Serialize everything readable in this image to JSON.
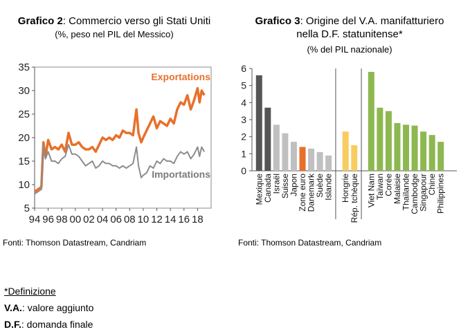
{
  "left_chart": {
    "title_bold": "Grafico 2",
    "title_rest": ": Commercio verso gli Stati Uniti",
    "subtitle": "(%, peso nel PIL del Messico)",
    "source": "Fonti: Thomson Datastream, Candriam"
  },
  "right_chart": {
    "title_bold": "Grafico 3",
    "title_rest": ": Origine del V.A. manifatturiero",
    "title_line2": "nella D.F. statunitense*",
    "subtitle": "(% del PIL nazionale)",
    "source": "Fonti: Thomson Datastream, Candriam"
  },
  "definitions": {
    "heading": "*Definizione",
    "items": [
      {
        "term": "V.A.",
        "text": ": valore aggiunto"
      },
      {
        "term": "D.F.",
        "text": ": domanda finale"
      }
    ]
  },
  "chart_data": [
    {
      "type": "line",
      "title": "Commercio verso gli Stati Uniti",
      "ylim": [
        5,
        35
      ],
      "yticks": [
        "5",
        "10",
        "15",
        "20",
        "25",
        "30",
        "35"
      ],
      "xlim": [
        1994,
        2020
      ],
      "xticks": [
        "94",
        "96",
        "98",
        "00",
        "02",
        "04",
        "06",
        "08",
        "10",
        "12",
        "14",
        "16",
        "18"
      ],
      "grid": false,
      "series": [
        {
          "name": "Exportations",
          "color": "#e8702a",
          "points": [
            [
              1994,
              8.5
            ],
            [
              1995,
              9.5
            ],
            [
              1995.3,
              19
            ],
            [
              1995.6,
              16
            ],
            [
              1996,
              19.5
            ],
            [
              1996.5,
              17.5
            ],
            [
              1997,
              18
            ],
            [
              1997.5,
              17.5
            ],
            [
              1998,
              18.5
            ],
            [
              1998.5,
              17
            ],
            [
              1999,
              21
            ],
            [
              1999.5,
              18.5
            ],
            [
              2000,
              18.5
            ],
            [
              2000.5,
              19
            ],
            [
              2001,
              18
            ],
            [
              2001.5,
              17.5
            ],
            [
              2002,
              17.5
            ],
            [
              2002.5,
              18
            ],
            [
              2003,
              17
            ],
            [
              2003.5,
              18.5
            ],
            [
              2004,
              20
            ],
            [
              2004.5,
              19.5
            ],
            [
              2005,
              20
            ],
            [
              2005.5,
              19.5
            ],
            [
              2006,
              20.5
            ],
            [
              2006.5,
              20
            ],
            [
              2007,
              21.5
            ],
            [
              2007.5,
              21
            ],
            [
              2008,
              21
            ],
            [
              2008.5,
              20.5
            ],
            [
              2009,
              26
            ],
            [
              2009.3,
              21
            ],
            [
              2009.7,
              19
            ],
            [
              2010,
              20
            ],
            [
              2010.5,
              21.5
            ],
            [
              2011,
              23
            ],
            [
              2011.5,
              24.5
            ],
            [
              2012,
              22
            ],
            [
              2012.5,
              23.5
            ],
            [
              2013,
              23
            ],
            [
              2013.5,
              22.5
            ],
            [
              2014,
              24
            ],
            [
              2014.5,
              23
            ],
            [
              2015,
              26
            ],
            [
              2015.5,
              27.5
            ],
            [
              2016,
              27
            ],
            [
              2016.5,
              29
            ],
            [
              2017,
              26
            ],
            [
              2017.5,
              28
            ],
            [
              2018,
              30.5
            ],
            [
              2018.3,
              27.5
            ],
            [
              2018.6,
              30
            ],
            [
              2019,
              29
            ]
          ]
        },
        {
          "name": "Importations",
          "color": "#8c8c8c",
          "points": [
            [
              1994,
              8
            ],
            [
              1995,
              9
            ],
            [
              1995.3,
              18.5
            ],
            [
              1995.6,
              15.5
            ],
            [
              1996,
              17
            ],
            [
              1996.5,
              15
            ],
            [
              1997,
              15
            ],
            [
              1997.5,
              14.5
            ],
            [
              1998,
              15.5
            ],
            [
              1998.5,
              16
            ],
            [
              1999,
              18.5
            ],
            [
              1999.5,
              16.5
            ],
            [
              2000,
              16.5
            ],
            [
              2000.5,
              16
            ],
            [
              2001,
              15
            ],
            [
              2001.5,
              14
            ],
            [
              2002,
              14.5
            ],
            [
              2002.5,
              15
            ],
            [
              2003,
              13.5
            ],
            [
              2003.5,
              14
            ],
            [
              2004,
              15
            ],
            [
              2004.5,
              14.5
            ],
            [
              2005,
              14.5
            ],
            [
              2005.5,
              14
            ],
            [
              2006,
              14
            ],
            [
              2006.5,
              13.5
            ],
            [
              2007,
              14
            ],
            [
              2007.5,
              13.5
            ],
            [
              2008,
              14
            ],
            [
              2008.5,
              14.5
            ],
            [
              2009,
              18
            ],
            [
              2009.3,
              14
            ],
            [
              2009.7,
              11.5
            ],
            [
              2010,
              12
            ],
            [
              2010.5,
              12.5
            ],
            [
              2011,
              14
            ],
            [
              2011.5,
              13.5
            ],
            [
              2012,
              15
            ],
            [
              2012.5,
              14.5
            ],
            [
              2013,
              15.5
            ],
            [
              2013.5,
              15
            ],
            [
              2014,
              15
            ],
            [
              2014.5,
              14.5
            ],
            [
              2015,
              16
            ],
            [
              2015.5,
              17
            ],
            [
              2016,
              16.5
            ],
            [
              2016.5,
              17
            ],
            [
              2017,
              15.5
            ],
            [
              2017.5,
              16.5
            ],
            [
              2018,
              18
            ],
            [
              2018.3,
              16
            ],
            [
              2018.6,
              18
            ],
            [
              2019,
              17
            ]
          ]
        }
      ]
    },
    {
      "type": "bar",
      "title": "Origine del V.A. manifatturiero nella D.F. statunitense",
      "ylim": [
        0,
        6
      ],
      "yticks": [
        "0",
        "1",
        "2",
        "3",
        "4",
        "5",
        "6"
      ],
      "grid": false,
      "groups": [
        {
          "categories": [
            "Mexique",
            "Canada",
            "Israël",
            "Suisse",
            "Japon",
            "Zone euro",
            "Danemark",
            "Suède",
            "Islande"
          ],
          "values": [
            5.6,
            3.7,
            2.7,
            2.2,
            1.7,
            1.4,
            1.3,
            1.1,
            0.9
          ],
          "colors": [
            "#555555",
            "#555555",
            "#c0c0c0",
            "#c0c0c0",
            "#c0c0c0",
            "#e8702a",
            "#c0c0c0",
            "#c0c0c0",
            "#c0c0c0"
          ]
        },
        {
          "categories": [
            "Hongrie",
            "Rép. tchèque"
          ],
          "values": [
            2.3,
            1.5
          ],
          "colors": [
            "#f7cd60",
            "#f7cd60"
          ]
        },
        {
          "categories": [
            "Viet Nam",
            "Taïwan",
            "Corée",
            "Malaisie",
            "Thaïlande",
            "Cambodge",
            "Singapour",
            "Chine",
            "Philippines"
          ],
          "values": [
            5.8,
            3.7,
            3.5,
            2.8,
            2.7,
            2.65,
            2.3,
            2.1,
            1.7
          ],
          "colors": [
            "#8db851",
            "#8db851",
            "#8db851",
            "#8db851",
            "#8db851",
            "#8db851",
            "#8db851",
            "#8db851",
            "#8db851"
          ]
        }
      ]
    }
  ]
}
